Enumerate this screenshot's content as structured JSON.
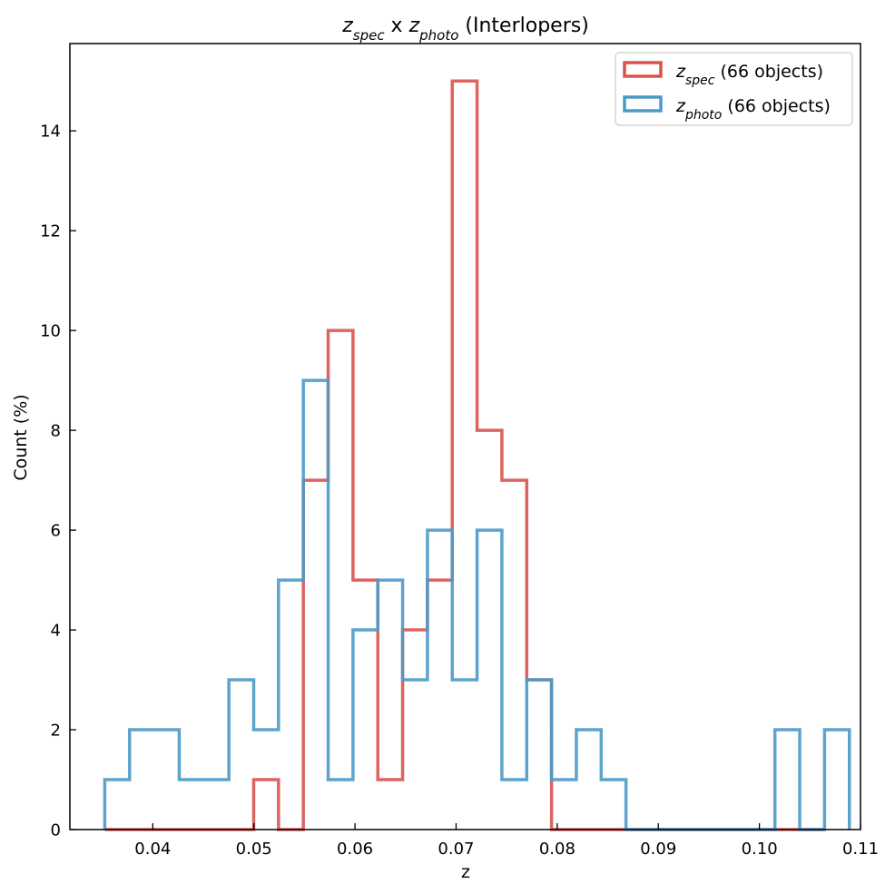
{
  "chart_data": {
    "type": "histogram-step",
    "title": {
      "parts": [
        {
          "text": "z",
          "italic": true
        },
        {
          "text": "spec",
          "italic": true,
          "sub": true
        },
        {
          "text": " x ",
          "italic": false
        },
        {
          "text": "z",
          "italic": true
        },
        {
          "text": "photo",
          "italic": true,
          "sub": true
        },
        {
          "text": " (Interlopers)",
          "italic": false
        }
      ]
    },
    "xlabel": "z",
    "ylabel": "Count (%)",
    "xlim": [
      0.0318,
      0.11
    ],
    "ylim": [
      0,
      15.75
    ],
    "xticks": [
      0.04,
      0.05,
      0.06,
      0.07,
      0.08,
      0.09,
      0.1,
      0.11
    ],
    "xtick_labels": [
      "0.04",
      "0.05",
      "0.06",
      "0.07",
      "0.08",
      "0.09",
      "0.10",
      "0.11"
    ],
    "yticks": [
      0,
      2,
      4,
      6,
      8,
      10,
      12,
      14
    ],
    "ytick_labels": [
      "0",
      "2",
      "4",
      "6",
      "8",
      "10",
      "12",
      "14"
    ],
    "bin_start": 0.03525,
    "bin_width": 0.002455,
    "legend_position": "top-right",
    "series": [
      {
        "name": "z_spec",
        "legend_main": "z",
        "legend_sub": "spec",
        "legend_suffix": " (66 objects)",
        "color": "#d9534f",
        "values": [
          0,
          0,
          0,
          0,
          0,
          0,
          1,
          0,
          7,
          10,
          5,
          1,
          4,
          5,
          15,
          8,
          7,
          3,
          0,
          0,
          0,
          0,
          0,
          0,
          0,
          0,
          0,
          0,
          0
        ]
      },
      {
        "name": "z_photo",
        "legend_main": "z",
        "legend_sub": "photo",
        "legend_suffix": " (66 objects)",
        "color": "#4b9ac7",
        "values": [
          1,
          2,
          2,
          1,
          1,
          3,
          2,
          5,
          9,
          1,
          4,
          5,
          3,
          6,
          3,
          6,
          1,
          3,
          1,
          2,
          1,
          0,
          0,
          0,
          0,
          0,
          0,
          2,
          0,
          2
        ]
      }
    ]
  }
}
